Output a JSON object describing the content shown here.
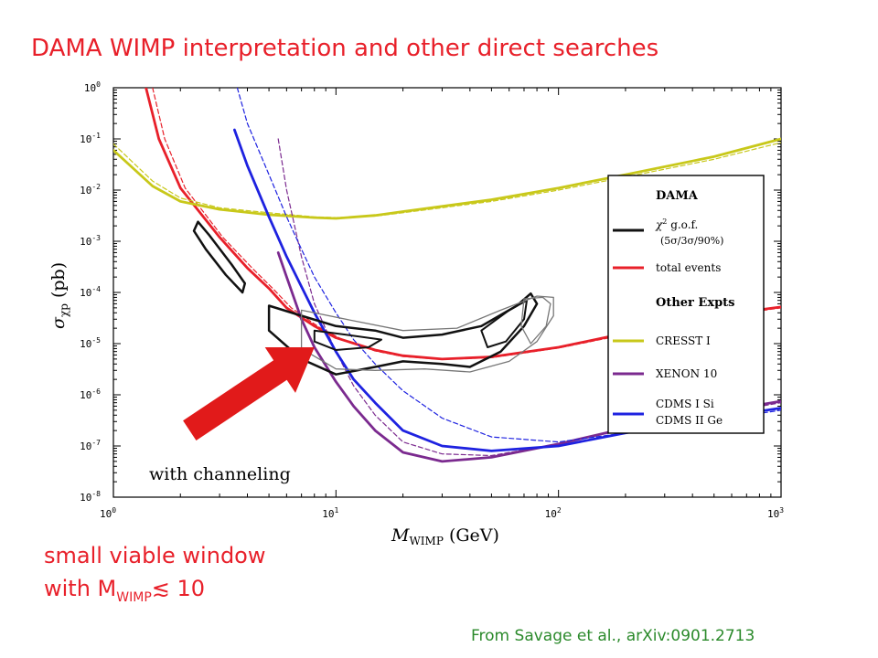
{
  "slide": {
    "title": "DAMA WIMP interpretation and other direct searches",
    "note_line1": "small viable window",
    "note_line2_prefix": "with M",
    "note_line2_sub": "WIMP",
    "note_line2_suffix": "≲ 10",
    "credit": "From Savage et al., arXiv:0901.2713"
  },
  "chart_data": {
    "type": "line",
    "xscale": "log",
    "yscale": "log",
    "xlim": [
      1,
      1000
    ],
    "ylim": [
      1e-08,
      1
    ],
    "xlabel_main": "M",
    "xlabel_sub": "WIMP",
    "xlabel_unit": " (GeV)",
    "ylabel_main": "σ",
    "ylabel_sub": "χp",
    "ylabel_unit": " (pb)",
    "xticks": [
      {
        "base": "10",
        "exp": "0",
        "v": 1
      },
      {
        "base": "10",
        "exp": "1",
        "v": 10
      },
      {
        "base": "10",
        "exp": "2",
        "v": 100
      },
      {
        "base": "10",
        "exp": "3",
        "v": 1000
      }
    ],
    "yticks": [
      {
        "base": "10",
        "exp": "0",
        "v": 1
      },
      {
        "base": "10",
        "exp": "-1",
        "v": 0.1
      },
      {
        "base": "10",
        "exp": "-2",
        "v": 0.01
      },
      {
        "base": "10",
        "exp": "-3",
        "v": 0.001
      },
      {
        "base": "10",
        "exp": "-4",
        "v": 0.0001
      },
      {
        "base": "10",
        "exp": "-5",
        "v": 1e-05
      },
      {
        "base": "10",
        "exp": "-6",
        "v": 1e-06
      },
      {
        "base": "10",
        "exp": "-7",
        "v": 1e-07
      },
      {
        "base": "10",
        "exp": "-8",
        "v": 1e-08
      }
    ],
    "annotation": "with channeling",
    "legend": {
      "placement": "right",
      "header1": "DAMA",
      "chi2_symbol": "χ",
      "chi2_exp": "2",
      "chi2_text": " g.o.f.",
      "chi2_levels": "(5σ/3σ/90%)",
      "total_events": "total events",
      "header2": "Other Expts",
      "cresst": "CRESST I",
      "xenon": "XENON 10",
      "cdms1": "CDMS I Si",
      "cdms2": "CDMS II Ge"
    },
    "colors": {
      "dama": "#111111",
      "total_events": "#e8202a",
      "cresst": "#c8c81a",
      "xenon": "#7b2a8f",
      "cdms": "#1e22e0",
      "arrow": "#e11a1a",
      "contour_grey": "#777777"
    },
    "series": [
      {
        "key": "total_events",
        "color": "#e8202a",
        "style": "solid",
        "points": [
          [
            1.4,
            1
          ],
          [
            1.6,
            0.1
          ],
          [
            2,
            0.011
          ],
          [
            3,
            0.0012
          ],
          [
            4,
            0.0003
          ],
          [
            5,
            0.00012
          ],
          [
            6,
            5e-05
          ],
          [
            8,
            2.2e-05
          ],
          [
            10,
            1.3e-05
          ],
          [
            15,
            7.5e-06
          ],
          [
            20,
            5.8e-06
          ],
          [
            30,
            5e-06
          ],
          [
            50,
            5.5e-06
          ],
          [
            100,
            8.5e-06
          ],
          [
            200,
            1.6e-05
          ],
          [
            500,
            3.5e-05
          ],
          [
            1000,
            5.2e-05
          ]
        ]
      },
      {
        "key": "total_events",
        "color": "#e8202a",
        "style": "dashed",
        "points": [
          [
            1.5,
            1
          ],
          [
            1.7,
            0.1
          ],
          [
            2.1,
            0.011
          ],
          [
            3.1,
            0.0012
          ],
          [
            4.2,
            0.0003
          ],
          [
            5.2,
            0.00012
          ],
          [
            6.3,
            5e-05
          ],
          [
            8.4,
            2.1e-05
          ],
          [
            10.5,
            1.25e-05
          ],
          [
            15,
            7.2e-06
          ],
          [
            20,
            5.6e-06
          ],
          [
            30,
            4.9e-06
          ],
          [
            50,
            5.3e-06
          ],
          [
            100,
            8.2e-06
          ],
          [
            200,
            1.5e-05
          ],
          [
            500,
            3.3e-05
          ],
          [
            1000,
            5e-05
          ]
        ]
      },
      {
        "key": "cresst",
        "color": "#c8c81a",
        "style": "solid",
        "points": [
          [
            1,
            0.06
          ],
          [
            1.5,
            0.012
          ],
          [
            2,
            0.006
          ],
          [
            3,
            0.0042
          ],
          [
            5,
            0.0033
          ],
          [
            8,
            0.0029
          ],
          [
            10,
            0.0028
          ],
          [
            15,
            0.0032
          ],
          [
            20,
            0.0038
          ],
          [
            50,
            0.0065
          ],
          [
            100,
            0.011
          ],
          [
            200,
            0.02
          ],
          [
            500,
            0.045
          ],
          [
            1000,
            0.1
          ]
        ]
      },
      {
        "key": "cresst",
        "color": "#c8c81a",
        "style": "dashed",
        "points": [
          [
            1,
            0.08
          ],
          [
            1.5,
            0.015
          ],
          [
            2,
            0.007
          ],
          [
            3,
            0.0045
          ],
          [
            5,
            0.0036
          ],
          [
            8,
            0.003
          ],
          [
            10,
            0.0029
          ],
          [
            15,
            0.0031
          ],
          [
            20,
            0.0036
          ],
          [
            50,
            0.006
          ],
          [
            100,
            0.01
          ],
          [
            200,
            0.018
          ],
          [
            500,
            0.04
          ],
          [
            1000,
            0.085
          ]
        ]
      },
      {
        "key": "xenon",
        "color": "#7b2a8f",
        "style": "solid",
        "points": [
          [
            5.5,
            0.0006
          ],
          [
            6,
            0.0002
          ],
          [
            7,
            3e-05
          ],
          [
            8,
            8.5e-06
          ],
          [
            10,
            1.8e-06
          ],
          [
            12,
            6e-07
          ],
          [
            15,
            2e-07
          ],
          [
            20,
            7.5e-08
          ],
          [
            30,
            5e-08
          ],
          [
            50,
            6e-08
          ],
          [
            100,
            1.1e-07
          ],
          [
            200,
            2.2e-07
          ],
          [
            500,
            4.5e-07
          ],
          [
            1000,
            7.5e-07
          ]
        ]
      },
      {
        "key": "xenon",
        "color": "#7b2a8f",
        "style": "dashed",
        "points": [
          [
            5.5,
            0.1
          ],
          [
            6,
            0.01
          ],
          [
            7,
            0.0005
          ],
          [
            8,
            6e-05
          ],
          [
            10,
            7e-06
          ],
          [
            12,
            1.5e-06
          ],
          [
            15,
            4e-07
          ],
          [
            20,
            1.2e-07
          ],
          [
            30,
            7e-08
          ],
          [
            50,
            6.5e-08
          ],
          [
            100,
            1.1e-07
          ],
          [
            200,
            2.1e-07
          ],
          [
            500,
            4.2e-07
          ],
          [
            1000,
            7e-07
          ]
        ]
      },
      {
        "key": "cdms",
        "color": "#1e22e0",
        "style": "solid",
        "points": [
          [
            3.5,
            0.15
          ],
          [
            4,
            0.03
          ],
          [
            5,
            0.003
          ],
          [
            6,
            0.0005
          ],
          [
            7,
            0.00013
          ],
          [
            8,
            4e-05
          ],
          [
            10,
            7e-06
          ],
          [
            12,
            2e-06
          ],
          [
            15,
            7e-07
          ],
          [
            20,
            2e-07
          ],
          [
            30,
            1e-07
          ],
          [
            50,
            8e-08
          ],
          [
            100,
            1e-07
          ],
          [
            200,
            1.8e-07
          ],
          [
            500,
            3.5e-07
          ],
          [
            1000,
            5.5e-07
          ]
        ]
      },
      {
        "key": "cdms",
        "color": "#1e22e0",
        "style": "dashed",
        "points": [
          [
            3.6,
            1
          ],
          [
            4,
            0.2
          ],
          [
            5,
            0.02
          ],
          [
            6,
            0.003
          ],
          [
            7,
            0.0007
          ],
          [
            8,
            0.0002
          ],
          [
            10,
            4e-05
          ],
          [
            12,
            1.2e-05
          ],
          [
            15,
            4e-06
          ],
          [
            20,
            1.2e-06
          ],
          [
            30,
            3.5e-07
          ],
          [
            50,
            1.5e-07
          ],
          [
            100,
            1.2e-07
          ],
          [
            200,
            1.8e-07
          ],
          [
            500,
            3.2e-07
          ],
          [
            1000,
            5e-07
          ]
        ]
      }
    ],
    "dama_regions": [
      {
        "color": "#111111",
        "width": 2.5,
        "points": [
          [
            2.4,
            0.0024
          ],
          [
            2.7,
            0.0013
          ],
          [
            3.4,
            0.00035
          ],
          [
            3.9,
            0.00015
          ],
          [
            3.8,
            0.0001
          ],
          [
            3.2,
            0.00022
          ],
          [
            2.6,
            0.0007
          ],
          [
            2.3,
            0.0016
          ]
        ]
      },
      {
        "color": "#111111",
        "width": 2.5,
        "points": [
          [
            5,
            5.5e-05
          ],
          [
            7,
            3.5e-05
          ],
          [
            10,
            2.2e-05
          ],
          [
            15,
            1.8e-05
          ],
          [
            20,
            1.3e-05
          ],
          [
            30,
            1.5e-05
          ],
          [
            45,
            2.2e-05
          ],
          [
            65,
            5.5e-05
          ],
          [
            75,
            9.5e-05
          ],
          [
            80,
            6e-05
          ],
          [
            70,
            2.2e-05
          ],
          [
            55,
            7e-06
          ],
          [
            40,
            3.5e-06
          ],
          [
            30,
            4e-06
          ],
          [
            20,
            4.5e-06
          ],
          [
            15,
            3.5e-06
          ],
          [
            10,
            2.5e-06
          ],
          [
            7,
            5e-06
          ],
          [
            5,
            1.8e-05
          ]
        ]
      },
      {
        "color": "#111111",
        "width": 2,
        "points": [
          [
            8,
            1.8e-05
          ],
          [
            11,
            1.5e-05
          ],
          [
            16,
            1.2e-05
          ],
          [
            14,
            8.5e-06
          ],
          [
            10,
            7.5e-06
          ],
          [
            8,
            1.1e-05
          ]
        ]
      },
      {
        "color": "#111111",
        "width": 2,
        "points": [
          [
            45,
            1.8e-05
          ],
          [
            60,
            4.5e-05
          ],
          [
            72,
            7e-05
          ],
          [
            70,
            3e-05
          ],
          [
            58,
            1.1e-05
          ],
          [
            48,
            8.5e-06
          ]
        ]
      },
      {
        "color": "#777777",
        "width": 1.3,
        "points": [
          [
            7,
            4.5e-05
          ],
          [
            12,
            2.8e-05
          ],
          [
            20,
            1.8e-05
          ],
          [
            35,
            2e-05
          ],
          [
            55,
            4.5e-05
          ],
          [
            80,
            8.5e-05
          ],
          [
            95,
            8e-05
          ],
          [
            95,
            3.5e-05
          ],
          [
            80,
            1.1e-05
          ],
          [
            60,
            4.5e-06
          ],
          [
            40,
            2.8e-06
          ],
          [
            25,
            3.2e-06
          ],
          [
            15,
            3e-06
          ],
          [
            10,
            3.2e-06
          ],
          [
            7,
            8e-06
          ]
        ]
      },
      {
        "color": "#777777",
        "width": 1.3,
        "points": [
          [
            70,
            7.5e-05
          ],
          [
            85,
            8e-05
          ],
          [
            92,
            6e-05
          ],
          [
            88,
            2.2e-05
          ],
          [
            75,
            1e-05
          ],
          [
            68,
            2.2e-05
          ]
        ]
      }
    ],
    "arrow": {
      "tail": [
        2.2,
        2e-07
      ],
      "tip": [
        8,
        8.5e-06
      ]
    }
  }
}
